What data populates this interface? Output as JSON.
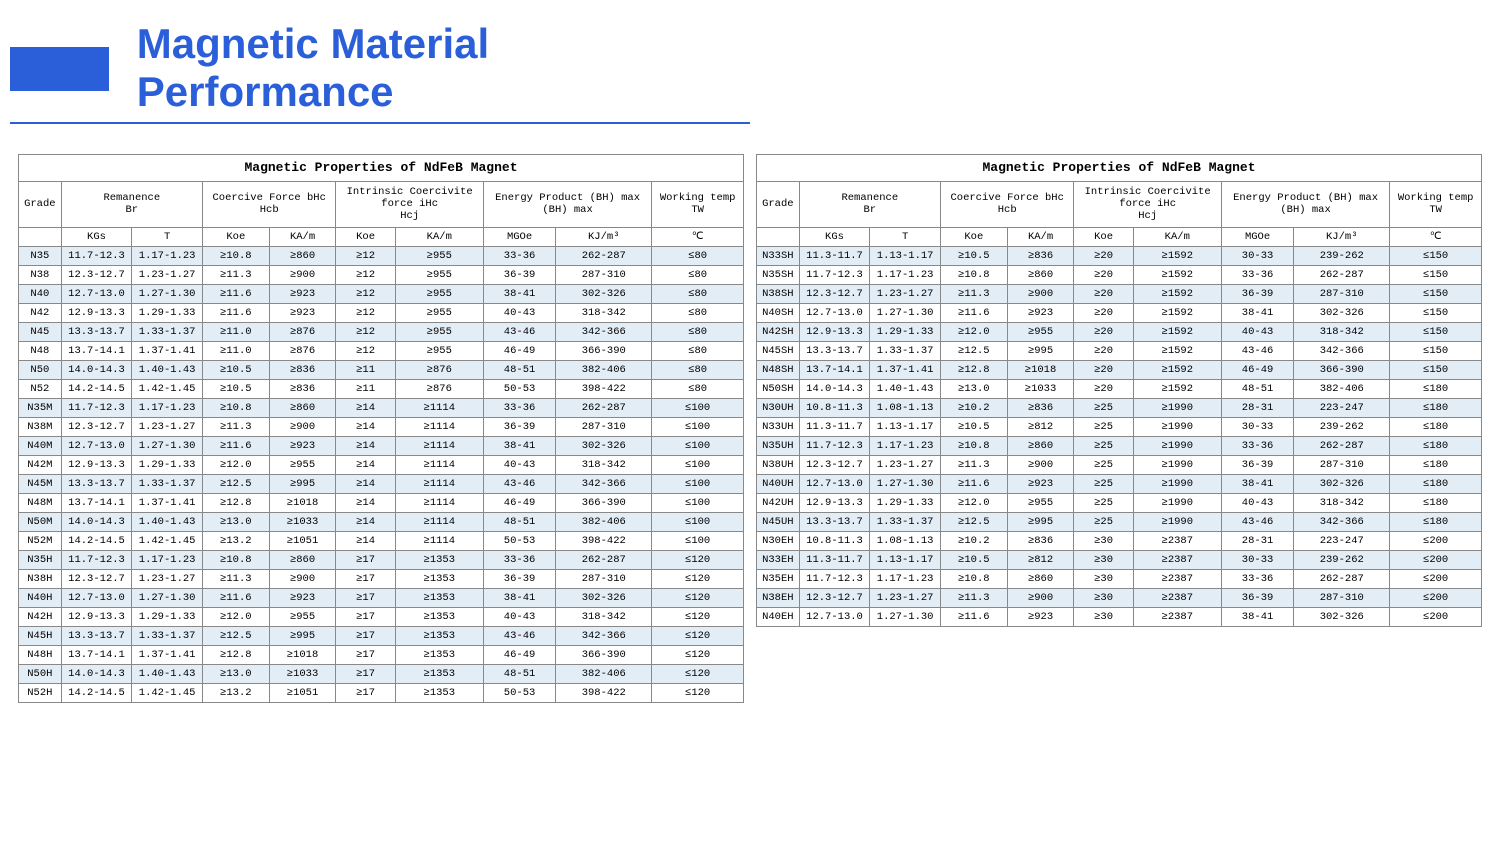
{
  "page_title": "Magnetic Material Performance",
  "colors": {
    "primary": "#2b5fd9",
    "row_tint": "#e3edf6",
    "border": "#888888",
    "background": "#ffffff"
  },
  "table_title": "Magnetic Properties of NdFeB Magnet",
  "headers": {
    "grade": "Grade",
    "remanence": "Remanence\nBr",
    "coercive": "Coercive Force bHc\nHcb",
    "intrinsic": "Intrinsic Coercivite\nforce iHc\nHcj",
    "energy": "Energy Product (BH) max\n(BH) max",
    "temp": "Working temp\nTW"
  },
  "units": [
    "KGs",
    "T",
    "Koe",
    "KA/m",
    "Koe",
    "KA/m",
    "MGOe",
    "KJ/m³",
    "℃"
  ],
  "left_rows": [
    [
      "N35",
      "11.7-12.3",
      "1.17-1.23",
      "≥10.8",
      "≥860",
      "≥12",
      "≥955",
      "33-36",
      "262-287",
      "≤80"
    ],
    [
      "N38",
      "12.3-12.7",
      "1.23-1.27",
      "≥11.3",
      "≥900",
      "≥12",
      "≥955",
      "36-39",
      "287-310",
      "≤80"
    ],
    [
      "N40",
      "12.7-13.0",
      "1.27-1.30",
      "≥11.6",
      "≥923",
      "≥12",
      "≥955",
      "38-41",
      "302-326",
      "≤80"
    ],
    [
      "N42",
      "12.9-13.3",
      "1.29-1.33",
      "≥11.6",
      "≥923",
      "≥12",
      "≥955",
      "40-43",
      "318-342",
      "≤80"
    ],
    [
      "N45",
      "13.3-13.7",
      "1.33-1.37",
      "≥11.0",
      "≥876",
      "≥12",
      "≥955",
      "43-46",
      "342-366",
      "≤80"
    ],
    [
      "N48",
      "13.7-14.1",
      "1.37-1.41",
      "≥11.0",
      "≥876",
      "≥12",
      "≥955",
      "46-49",
      "366-390",
      "≤80"
    ],
    [
      "N50",
      "14.0-14.3",
      "1.40-1.43",
      "≥10.5",
      "≥836",
      "≥11",
      "≥876",
      "48-51",
      "382-406",
      "≤80"
    ],
    [
      "N52",
      "14.2-14.5",
      "1.42-1.45",
      "≥10.5",
      "≥836",
      "≥11",
      "≥876",
      "50-53",
      "398-422",
      "≤80"
    ],
    [
      "N35M",
      "11.7-12.3",
      "1.17-1.23",
      "≥10.8",
      "≥860",
      "≥14",
      "≥1114",
      "33-36",
      "262-287",
      "≤100"
    ],
    [
      "N38M",
      "12.3-12.7",
      "1.23-1.27",
      "≥11.3",
      "≥900",
      "≥14",
      "≥1114",
      "36-39",
      "287-310",
      "≤100"
    ],
    [
      "N40M",
      "12.7-13.0",
      "1.27-1.30",
      "≥11.6",
      "≥923",
      "≥14",
      "≥1114",
      "38-41",
      "302-326",
      "≤100"
    ],
    [
      "N42M",
      "12.9-13.3",
      "1.29-1.33",
      "≥12.0",
      "≥955",
      "≥14",
      "≥1114",
      "40-43",
      "318-342",
      "≤100"
    ],
    [
      "N45M",
      "13.3-13.7",
      "1.33-1.37",
      "≥12.5",
      "≥995",
      "≥14",
      "≥1114",
      "43-46",
      "342-366",
      "≤100"
    ],
    [
      "N48M",
      "13.7-14.1",
      "1.37-1.41",
      "≥12.8",
      "≥1018",
      "≥14",
      "≥1114",
      "46-49",
      "366-390",
      "≤100"
    ],
    [
      "N50M",
      "14.0-14.3",
      "1.40-1.43",
      "≥13.0",
      "≥1033",
      "≥14",
      "≥1114",
      "48-51",
      "382-406",
      "≤100"
    ],
    [
      "N52M",
      "14.2-14.5",
      "1.42-1.45",
      "≥13.2",
      "≥1051",
      "≥14",
      "≥1114",
      "50-53",
      "398-422",
      "≤100"
    ],
    [
      "N35H",
      "11.7-12.3",
      "1.17-1.23",
      "≥10.8",
      "≥860",
      "≥17",
      "≥1353",
      "33-36",
      "262-287",
      "≤120"
    ],
    [
      "N38H",
      "12.3-12.7",
      "1.23-1.27",
      "≥11.3",
      "≥900",
      "≥17",
      "≥1353",
      "36-39",
      "287-310",
      "≤120"
    ],
    [
      "N40H",
      "12.7-13.0",
      "1.27-1.30",
      "≥11.6",
      "≥923",
      "≥17",
      "≥1353",
      "38-41",
      "302-326",
      "≤120"
    ],
    [
      "N42H",
      "12.9-13.3",
      "1.29-1.33",
      "≥12.0",
      "≥955",
      "≥17",
      "≥1353",
      "40-43",
      "318-342",
      "≤120"
    ],
    [
      "N45H",
      "13.3-13.7",
      "1.33-1.37",
      "≥12.5",
      "≥995",
      "≥17",
      "≥1353",
      "43-46",
      "342-366",
      "≤120"
    ],
    [
      "N48H",
      "13.7-14.1",
      "1.37-1.41",
      "≥12.8",
      "≥1018",
      "≥17",
      "≥1353",
      "46-49",
      "366-390",
      "≤120"
    ],
    [
      "N50H",
      "14.0-14.3",
      "1.40-1.43",
      "≥13.0",
      "≥1033",
      "≥17",
      "≥1353",
      "48-51",
      "382-406",
      "≤120"
    ],
    [
      "N52H",
      "14.2-14.5",
      "1.42-1.45",
      "≥13.2",
      "≥1051",
      "≥17",
      "≥1353",
      "50-53",
      "398-422",
      "≤120"
    ]
  ],
  "right_rows": [
    [
      "N33SH",
      "11.3-11.7",
      "1.13-1.17",
      "≥10.5",
      "≥836",
      "≥20",
      "≥1592",
      "30-33",
      "239-262",
      "≤150"
    ],
    [
      "N35SH",
      "11.7-12.3",
      "1.17-1.23",
      "≥10.8",
      "≥860",
      "≥20",
      "≥1592",
      "33-36",
      "262-287",
      "≤150"
    ],
    [
      "N38SH",
      "12.3-12.7",
      "1.23-1.27",
      "≥11.3",
      "≥900",
      "≥20",
      "≥1592",
      "36-39",
      "287-310",
      "≤150"
    ],
    [
      "N40SH",
      "12.7-13.0",
      "1.27-1.30",
      "≥11.6",
      "≥923",
      "≥20",
      "≥1592",
      "38-41",
      "302-326",
      "≤150"
    ],
    [
      "N42SH",
      "12.9-13.3",
      "1.29-1.33",
      "≥12.0",
      "≥955",
      "≥20",
      "≥1592",
      "40-43",
      "318-342",
      "≤150"
    ],
    [
      "N45SH",
      "13.3-13.7",
      "1.33-1.37",
      "≥12.5",
      "≥995",
      "≥20",
      "≥1592",
      "43-46",
      "342-366",
      "≤150"
    ],
    [
      "N48SH",
      "13.7-14.1",
      "1.37-1.41",
      "≥12.8",
      "≥1018",
      "≥20",
      "≥1592",
      "46-49",
      "366-390",
      "≤150"
    ],
    [
      "N50SH",
      "14.0-14.3",
      "1.40-1.43",
      "≥13.0",
      "≥1033",
      "≥20",
      "≥1592",
      "48-51",
      "382-406",
      "≤180"
    ],
    [
      "N30UH",
      "10.8-11.3",
      "1.08-1.13",
      "≥10.2",
      "≥836",
      "≥25",
      "≥1990",
      "28-31",
      "223-247",
      "≤180"
    ],
    [
      "N33UH",
      "11.3-11.7",
      "1.13-1.17",
      "≥10.5",
      "≥812",
      "≥25",
      "≥1990",
      "30-33",
      "239-262",
      "≤180"
    ],
    [
      "N35UH",
      "11.7-12.3",
      "1.17-1.23",
      "≥10.8",
      "≥860",
      "≥25",
      "≥1990",
      "33-36",
      "262-287",
      "≤180"
    ],
    [
      "N38UH",
      "12.3-12.7",
      "1.23-1.27",
      "≥11.3",
      "≥900",
      "≥25",
      "≥1990",
      "36-39",
      "287-310",
      "≤180"
    ],
    [
      "N40UH",
      "12.7-13.0",
      "1.27-1.30",
      "≥11.6",
      "≥923",
      "≥25",
      "≥1990",
      "38-41",
      "302-326",
      "≤180"
    ],
    [
      "N42UH",
      "12.9-13.3",
      "1.29-1.33",
      "≥12.0",
      "≥955",
      "≥25",
      "≥1990",
      "40-43",
      "318-342",
      "≤180"
    ],
    [
      "N45UH",
      "13.3-13.7",
      "1.33-1.37",
      "≥12.5",
      "≥995",
      "≥25",
      "≥1990",
      "43-46",
      "342-366",
      "≤180"
    ],
    [
      "N30EH",
      "10.8-11.3",
      "1.08-1.13",
      "≥10.2",
      "≥836",
      "≥30",
      "≥2387",
      "28-31",
      "223-247",
      "≤200"
    ],
    [
      "N33EH",
      "11.3-11.7",
      "1.13-1.17",
      "≥10.5",
      "≥812",
      "≥30",
      "≥2387",
      "30-33",
      "239-262",
      "≤200"
    ],
    [
      "N35EH",
      "11.7-12.3",
      "1.17-1.23",
      "≥10.8",
      "≥860",
      "≥30",
      "≥2387",
      "33-36",
      "262-287",
      "≤200"
    ],
    [
      "N38EH",
      "12.3-12.7",
      "1.23-1.27",
      "≥11.3",
      "≥900",
      "≥30",
      "≥2387",
      "36-39",
      "287-310",
      "≤200"
    ],
    [
      "N40EH",
      "12.7-13.0",
      "1.27-1.30",
      "≥11.6",
      "≥923",
      "≥30",
      "≥2387",
      "38-41",
      "302-326",
      "≤200"
    ]
  ]
}
